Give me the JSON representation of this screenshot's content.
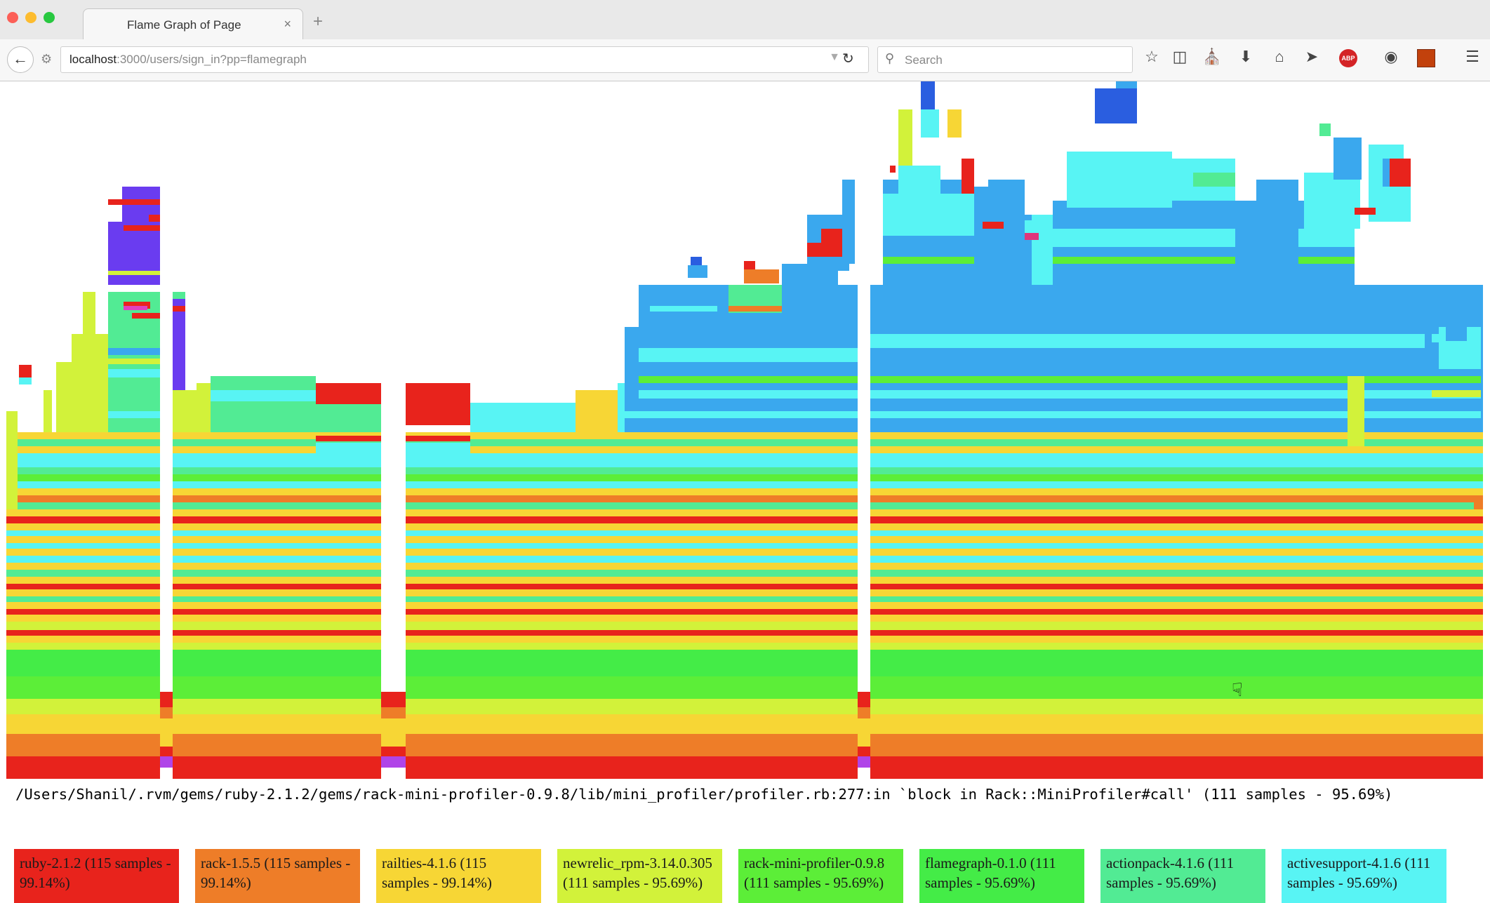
{
  "window": {
    "controls": [
      "close",
      "minimize",
      "zoom"
    ]
  },
  "tab": {
    "title": "Flame Graph of Page",
    "close": "×"
  },
  "new_tab": "+",
  "toolbar": {
    "url_host": "localhost",
    "url_path": ":3000/users/sign_in?pp=flamegraph",
    "search_placeholder": "Search",
    "abp_label": "ABP",
    "icons": [
      "back-icon",
      "site-info-icon",
      "reload-icon",
      "search-icon",
      "star-icon",
      "reading-list-icon",
      "pocket-icon",
      "download-icon",
      "home-icon",
      "send-icon",
      "adblock-icon",
      "chat-icon",
      "extension-icon",
      "menu-icon"
    ]
  },
  "status_line": "/Users/Shanil/.rvm/gems/ruby-2.1.2/gems/rack-mini-profiler-0.9.8/lib/mini_profiler/profiler.rb:277:in `block in Rack::MiniProfiler#call' (111 samples - 95.69%)",
  "legend": [
    {
      "label": "ruby-2.1.2 (115 samples - 99.14%)",
      "color": "#e8231c"
    },
    {
      "label": "rack-1.5.5 (115 samples - 99.14%)",
      "color": "#ee7d28"
    },
    {
      "label": "railties-4.1.6 (115 samples - 99.14%)",
      "color": "#f7d635"
    },
    {
      "label": "newrelic_rpm-3.14.0.305 (111 samples - 95.69%)",
      "color": "#d2f23a"
    },
    {
      "label": "rack-mini-profiler-0.9.8 (111 samples - 95.69%)",
      "color": "#5cee38"
    },
    {
      "label": "flamegraph-0.1.0 (111 samples - 95.69%)",
      "color": "#44ec47"
    },
    {
      "label": "actionpack-4.1.6 (111 samples - 95.69%)",
      "color": "#52eb94"
    },
    {
      "label": "activesupport-4.1.6 (111 samples - 95.69%)",
      "color": "#58f4f4"
    }
  ],
  "colors": {
    "ruby": "#e8231c",
    "rack": "#ee7d28",
    "railties": "#f7d635",
    "newrelic": "#d2f23a",
    "mini": "#5cee38",
    "flamegraph": "#44ec47",
    "actionpack": "#52eb94",
    "activesupport": "#58f4f4",
    "actionview": "#3aa8ee",
    "activerecord": "#2a5ee0",
    "devise": "#6a3cf0",
    "gray": "#c8c8c8"
  }
}
